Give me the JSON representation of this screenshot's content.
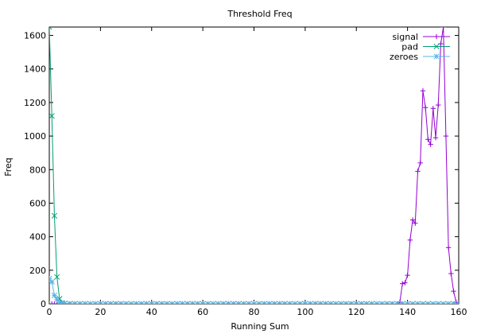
{
  "chart_data": {
    "type": "line",
    "title": "Threshold Freq",
    "xlabel": "Running Sum",
    "ylabel": "Freq",
    "xlim": [
      0,
      160
    ],
    "ylim": [
      0,
      1650
    ],
    "xticks": [
      "0",
      "20",
      "40",
      "60",
      "80",
      "100",
      "120",
      "140",
      "160"
    ],
    "yticks": [
      "0",
      "200",
      "400",
      "600",
      "800",
      "1000",
      "1200",
      "1400",
      "1600"
    ],
    "grid": false,
    "legend_position": "top-right",
    "series": [
      {
        "name": "signal",
        "color": "#9400d3",
        "marker": "+",
        "points": [
          [
            0,
            0
          ],
          [
            1,
            0
          ],
          [
            2,
            0
          ],
          [
            3,
            0
          ],
          [
            136,
            0
          ],
          [
            137,
            10
          ],
          [
            138,
            120
          ],
          [
            139,
            125
          ],
          [
            140,
            170
          ],
          [
            141,
            380
          ],
          [
            142,
            500
          ],
          [
            143,
            480
          ],
          [
            144,
            790
          ],
          [
            145,
            840
          ],
          [
            146,
            1270
          ],
          [
            147,
            1170
          ],
          [
            148,
            980
          ],
          [
            149,
            950
          ],
          [
            150,
            1165
          ],
          [
            151,
            990
          ],
          [
            152,
            1185
          ],
          [
            153,
            1550
          ],
          [
            154,
            1650
          ],
          [
            155,
            1000
          ],
          [
            156,
            335
          ],
          [
            157,
            180
          ],
          [
            158,
            75
          ],
          [
            159,
            10
          ],
          [
            160,
            0
          ]
        ]
      },
      {
        "name": "pad",
        "color": "#009e73",
        "marker": "x",
        "points": [
          [
            0,
            1650
          ],
          [
            1,
            1120
          ],
          [
            2,
            525
          ],
          [
            3,
            160
          ],
          [
            4,
            30
          ],
          [
            5,
            5
          ],
          [
            6,
            2
          ],
          [
            8,
            1
          ],
          [
            10,
            0
          ],
          [
            160,
            0
          ]
        ]
      },
      {
        "name": "zeroes",
        "color": "#56b4e9",
        "marker": "*",
        "points": [
          [
            0,
            150
          ],
          [
            1,
            130
          ],
          [
            2,
            50
          ],
          [
            3,
            25
          ],
          [
            4,
            8
          ],
          [
            5,
            3
          ],
          [
            6,
            1
          ],
          [
            8,
            0
          ],
          [
            160,
            0
          ]
        ]
      }
    ]
  }
}
